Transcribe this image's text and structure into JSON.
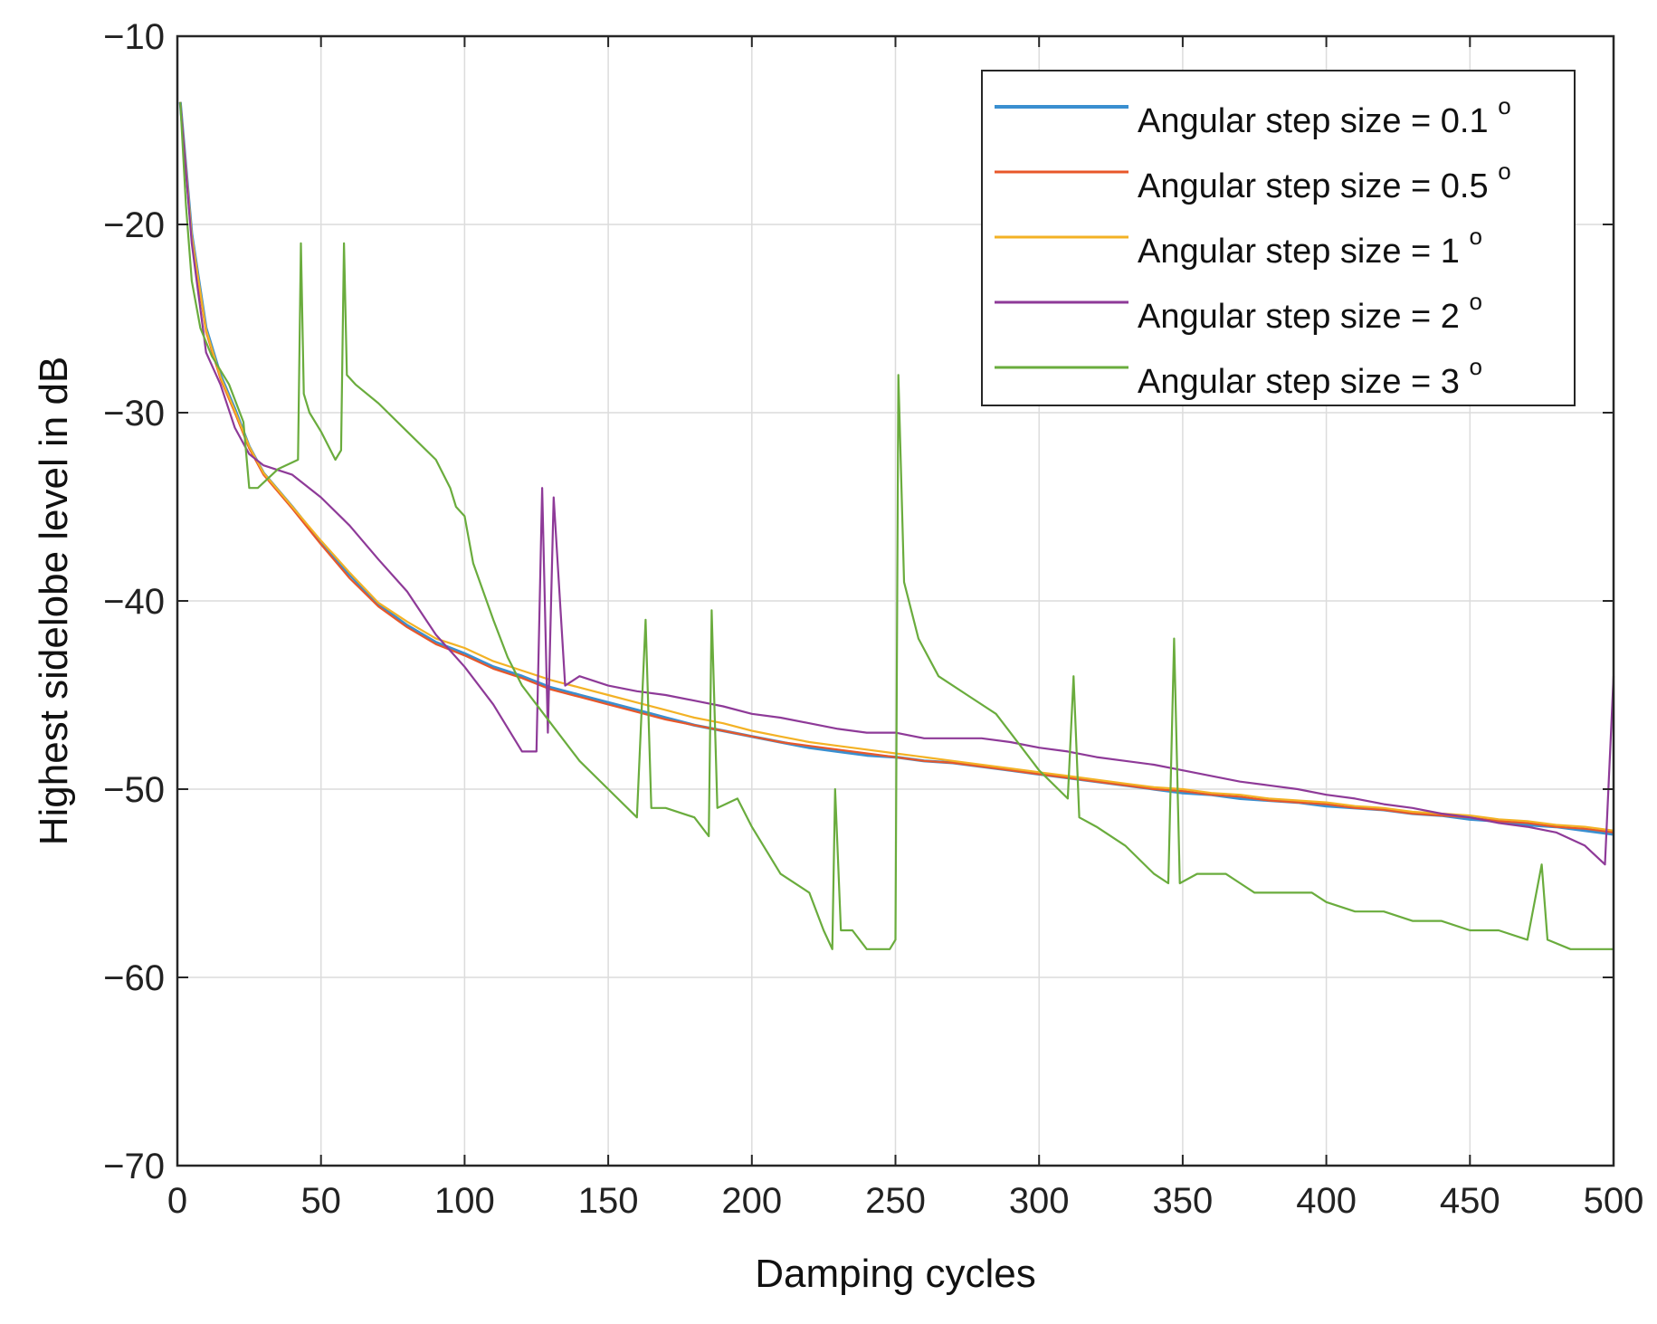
{
  "chart_data": {
    "type": "line",
    "title": "",
    "xlabel": "Damping cycles",
    "ylabel": "Highest sidelobe level in dB",
    "xlim": [
      0,
      500
    ],
    "ylim": [
      -70,
      -10
    ],
    "grid": true,
    "legend_position": "top-right",
    "x_ticks": [
      0,
      50,
      100,
      150,
      200,
      250,
      300,
      350,
      400,
      450,
      500
    ],
    "y_ticks": [
      -70,
      -60,
      -50,
      -40,
      -30,
      -20,
      -10
    ],
    "x_tick_labels": [
      "0",
      "50",
      "100",
      "150",
      "200",
      "250",
      "300",
      "350",
      "400",
      "450",
      "500"
    ],
    "y_tick_labels": [
      "−70",
      "−60",
      "−50",
      "−40",
      "−30",
      "−20",
      "−10"
    ],
    "series": [
      {
        "name": "Angular step size = 0.1",
        "superscript": "o",
        "color": "#3a8fd0",
        "width": 3.2,
        "x": [
          1,
          5,
          10,
          15,
          20,
          25,
          30,
          40,
          50,
          60,
          70,
          80,
          90,
          100,
          110,
          120,
          130,
          140,
          150,
          160,
          170,
          180,
          190,
          200,
          210,
          220,
          230,
          240,
          250,
          260,
          270,
          280,
          290,
          300,
          310,
          320,
          330,
          340,
          350,
          360,
          370,
          380,
          390,
          400,
          410,
          420,
          430,
          440,
          450,
          460,
          470,
          480,
          490,
          500
        ],
        "values": [
          -13.5,
          -20.5,
          -25.5,
          -28.0,
          -29.8,
          -31.8,
          -33.2,
          -35.0,
          -36.9,
          -38.6,
          -40.2,
          -41.3,
          -42.2,
          -42.8,
          -43.5,
          -44.0,
          -44.6,
          -45.0,
          -45.4,
          -45.8,
          -46.2,
          -46.6,
          -46.9,
          -47.2,
          -47.5,
          -47.8,
          -48.0,
          -48.2,
          -48.3,
          -48.5,
          -48.6,
          -48.8,
          -49.0,
          -49.2,
          -49.4,
          -49.6,
          -49.8,
          -50.0,
          -50.2,
          -50.3,
          -50.5,
          -50.6,
          -50.7,
          -50.9,
          -51.0,
          -51.1,
          -51.3,
          -51.4,
          -51.6,
          -51.7,
          -51.9,
          -52.0,
          -52.2,
          -52.4
        ]
      },
      {
        "name": "Angular step size = 0.5",
        "superscript": "o",
        "color": "#e8572a",
        "width": 2.2,
        "x": [
          1,
          5,
          10,
          15,
          20,
          25,
          30,
          40,
          50,
          60,
          70,
          80,
          90,
          100,
          110,
          120,
          130,
          140,
          150,
          160,
          170,
          180,
          190,
          200,
          210,
          220,
          230,
          240,
          250,
          260,
          270,
          280,
          290,
          300,
          310,
          320,
          330,
          340,
          350,
          360,
          370,
          380,
          390,
          400,
          410,
          420,
          430,
          440,
          450,
          460,
          470,
          480,
          490,
          500
        ],
        "values": [
          -13.5,
          -20.8,
          -25.7,
          -28.2,
          -30.0,
          -31.9,
          -33.3,
          -35.1,
          -37.0,
          -38.8,
          -40.3,
          -41.4,
          -42.3,
          -42.9,
          -43.6,
          -44.1,
          -44.7,
          -45.1,
          -45.5,
          -45.9,
          -46.3,
          -46.6,
          -46.9,
          -47.2,
          -47.5,
          -47.7,
          -47.9,
          -48.1,
          -48.3,
          -48.5,
          -48.6,
          -48.8,
          -49.0,
          -49.2,
          -49.4,
          -49.6,
          -49.8,
          -50.0,
          -50.1,
          -50.3,
          -50.4,
          -50.6,
          -50.7,
          -50.8,
          -51.0,
          -51.1,
          -51.3,
          -51.4,
          -51.5,
          -51.7,
          -51.8,
          -52.0,
          -52.1,
          -52.3
        ]
      },
      {
        "name": "Angular step size = 1",
        "superscript": "o",
        "color": "#f3b225",
        "width": 2.2,
        "x": [
          1,
          5,
          10,
          15,
          20,
          25,
          30,
          40,
          50,
          60,
          70,
          80,
          90,
          100,
          110,
          120,
          130,
          140,
          150,
          160,
          170,
          180,
          190,
          200,
          210,
          220,
          230,
          240,
          250,
          260,
          270,
          280,
          290,
          300,
          310,
          320,
          330,
          340,
          350,
          360,
          370,
          380,
          390,
          400,
          410,
          420,
          430,
          440,
          450,
          460,
          470,
          480,
          490,
          500
        ],
        "values": [
          -13.5,
          -20.6,
          -25.6,
          -28.1,
          -29.9,
          -31.8,
          -33.2,
          -35.0,
          -36.8,
          -38.5,
          -40.1,
          -41.1,
          -42.0,
          -42.5,
          -43.2,
          -43.7,
          -44.2,
          -44.6,
          -45.0,
          -45.4,
          -45.8,
          -46.2,
          -46.5,
          -46.9,
          -47.2,
          -47.5,
          -47.7,
          -47.9,
          -48.1,
          -48.3,
          -48.5,
          -48.7,
          -48.9,
          -49.1,
          -49.3,
          -49.5,
          -49.7,
          -49.9,
          -50.0,
          -50.2,
          -50.3,
          -50.5,
          -50.6,
          -50.7,
          -50.9,
          -51.0,
          -51.2,
          -51.3,
          -51.4,
          -51.6,
          -51.7,
          -51.9,
          -52.0,
          -52.2
        ]
      },
      {
        "name": "Angular step size = 2",
        "superscript": "o",
        "color": "#8e3a98",
        "width": 2.2,
        "x": [
          1,
          5,
          10,
          15,
          20,
          25,
          30,
          40,
          50,
          60,
          70,
          80,
          90,
          100,
          110,
          120,
          125,
          127,
          129,
          131,
          135,
          140,
          150,
          160,
          170,
          180,
          190,
          200,
          210,
          220,
          230,
          240,
          250,
          260,
          270,
          280,
          290,
          300,
          310,
          320,
          330,
          340,
          350,
          360,
          370,
          380,
          390,
          400,
          410,
          420,
          430,
          440,
          450,
          460,
          470,
          480,
          490,
          497,
          500
        ],
        "values": [
          -13.5,
          -21.0,
          -26.8,
          -28.5,
          -30.8,
          -32.2,
          -32.8,
          -33.3,
          -34.5,
          -36.0,
          -37.8,
          -39.5,
          -41.8,
          -43.5,
          -45.5,
          -48.0,
          -48.0,
          -34.0,
          -47.0,
          -34.5,
          -44.5,
          -44.0,
          -44.5,
          -44.8,
          -45.0,
          -45.3,
          -45.6,
          -46.0,
          -46.2,
          -46.5,
          -46.8,
          -47.0,
          -47.0,
          -47.3,
          -47.3,
          -47.3,
          -47.5,
          -47.8,
          -48.0,
          -48.3,
          -48.5,
          -48.7,
          -49.0,
          -49.3,
          -49.6,
          -49.8,
          -50.0,
          -50.3,
          -50.5,
          -50.8,
          -51.0,
          -51.3,
          -51.5,
          -51.8,
          -52.0,
          -52.3,
          -53.0,
          -54.0,
          -44.0
        ]
      },
      {
        "name": "Angular step size = 3",
        "superscript": "o",
        "color": "#6aac3d",
        "width": 2.2,
        "x": [
          1,
          3,
          5,
          8,
          12,
          18,
          23,
          25,
          28,
          35,
          42,
          43,
          44,
          46,
          50,
          55,
          57,
          58,
          59,
          62,
          70,
          80,
          90,
          95,
          97,
          100,
          103,
          110,
          115,
          120,
          130,
          140,
          150,
          160,
          163,
          165,
          170,
          180,
          185,
          186,
          188,
          195,
          200,
          210,
          220,
          225,
          228,
          229,
          231,
          235,
          240,
          245,
          248,
          250,
          251,
          253,
          258,
          265,
          275,
          285,
          290,
          300,
          310,
          312,
          314,
          320,
          330,
          340,
          345,
          347,
          349,
          355,
          365,
          370,
          375,
          385,
          395,
          400,
          410,
          420,
          430,
          440,
          450,
          460,
          470,
          475,
          477,
          485,
          495,
          500
        ],
        "values": [
          -13.5,
          -19.0,
          -23.0,
          -25.5,
          -27.0,
          -28.5,
          -30.5,
          -34.0,
          -34.0,
          -33.0,
          -32.5,
          -21.0,
          -29.0,
          -30.0,
          -31.0,
          -32.5,
          -32.0,
          -21.0,
          -28.0,
          -28.5,
          -29.5,
          -31.0,
          -32.5,
          -34.0,
          -35.0,
          -35.5,
          -38.0,
          -41.0,
          -43.0,
          -44.5,
          -46.5,
          -48.5,
          -50.0,
          -51.5,
          -41.0,
          -51.0,
          -51.0,
          -51.5,
          -52.5,
          -40.5,
          -51.0,
          -50.5,
          -52.0,
          -54.5,
          -55.5,
          -57.5,
          -58.5,
          -50.0,
          -57.5,
          -57.5,
          -58.5,
          -58.5,
          -58.5,
          -58.0,
          -28.0,
          -39.0,
          -42.0,
          -44.0,
          -45.0,
          -46.0,
          -47.0,
          -49.0,
          -50.5,
          -44.0,
          -51.5,
          -52.0,
          -53.0,
          -54.5,
          -55.0,
          -42.0,
          -55.0,
          -54.5,
          -54.5,
          -55.0,
          -55.5,
          -55.5,
          -55.5,
          -56.0,
          -56.5,
          -56.5,
          -57.0,
          -57.0,
          -57.5,
          -57.5,
          -58.0,
          -54.0,
          -58.0,
          -58.5,
          -58.5,
          -58.5
        ]
      }
    ]
  }
}
